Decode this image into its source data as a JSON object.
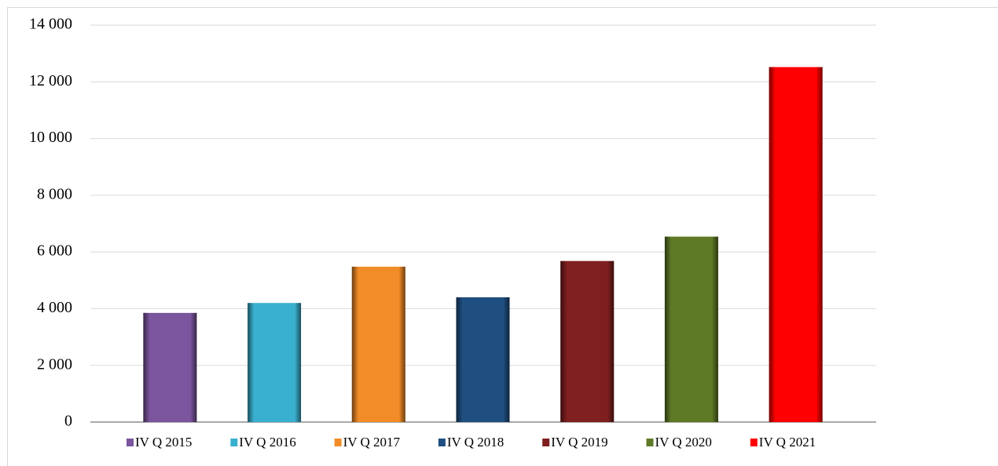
{
  "chart_data": {
    "type": "bar",
    "series": [
      {
        "name": "IV Q 2015",
        "color": "#7b559e",
        "values": [
          3850
        ]
      },
      {
        "name": "IV Q 2016",
        "color": "#3ab0d0",
        "values": [
          4200
        ]
      },
      {
        "name": "IV Q 2017",
        "color": "#f28c28",
        "values": [
          5480
        ]
      },
      {
        "name": "IV Q 2018",
        "color": "#1f4e80",
        "values": [
          4400
        ]
      },
      {
        "name": "IV Q 2019",
        "color": "#7f1f1f",
        "values": [
          5680
        ]
      },
      {
        "name": "IV Q 2020",
        "color": "#5e7a26",
        "values": [
          6540
        ]
      },
      {
        "name": "IV Q 2021",
        "color": "#ff0000",
        "values": [
          12520
        ]
      }
    ],
    "ylim": [
      0,
      14000
    ],
    "yticks": [
      0,
      {
        "value": 2000,
        "label": "2 000"
      },
      {
        "value": 4000,
        "label": "4 000"
      },
      {
        "value": 6000,
        "label": "6 000"
      },
      {
        "value": 8000,
        "label": "8 000"
      },
      {
        "value": 10000,
        "label": "10 000"
      },
      {
        "value": 12000,
        "label": "12 000"
      },
      {
        "value": 14000,
        "label": "14 000"
      }
    ],
    "grid": true,
    "legend": "bottom"
  }
}
